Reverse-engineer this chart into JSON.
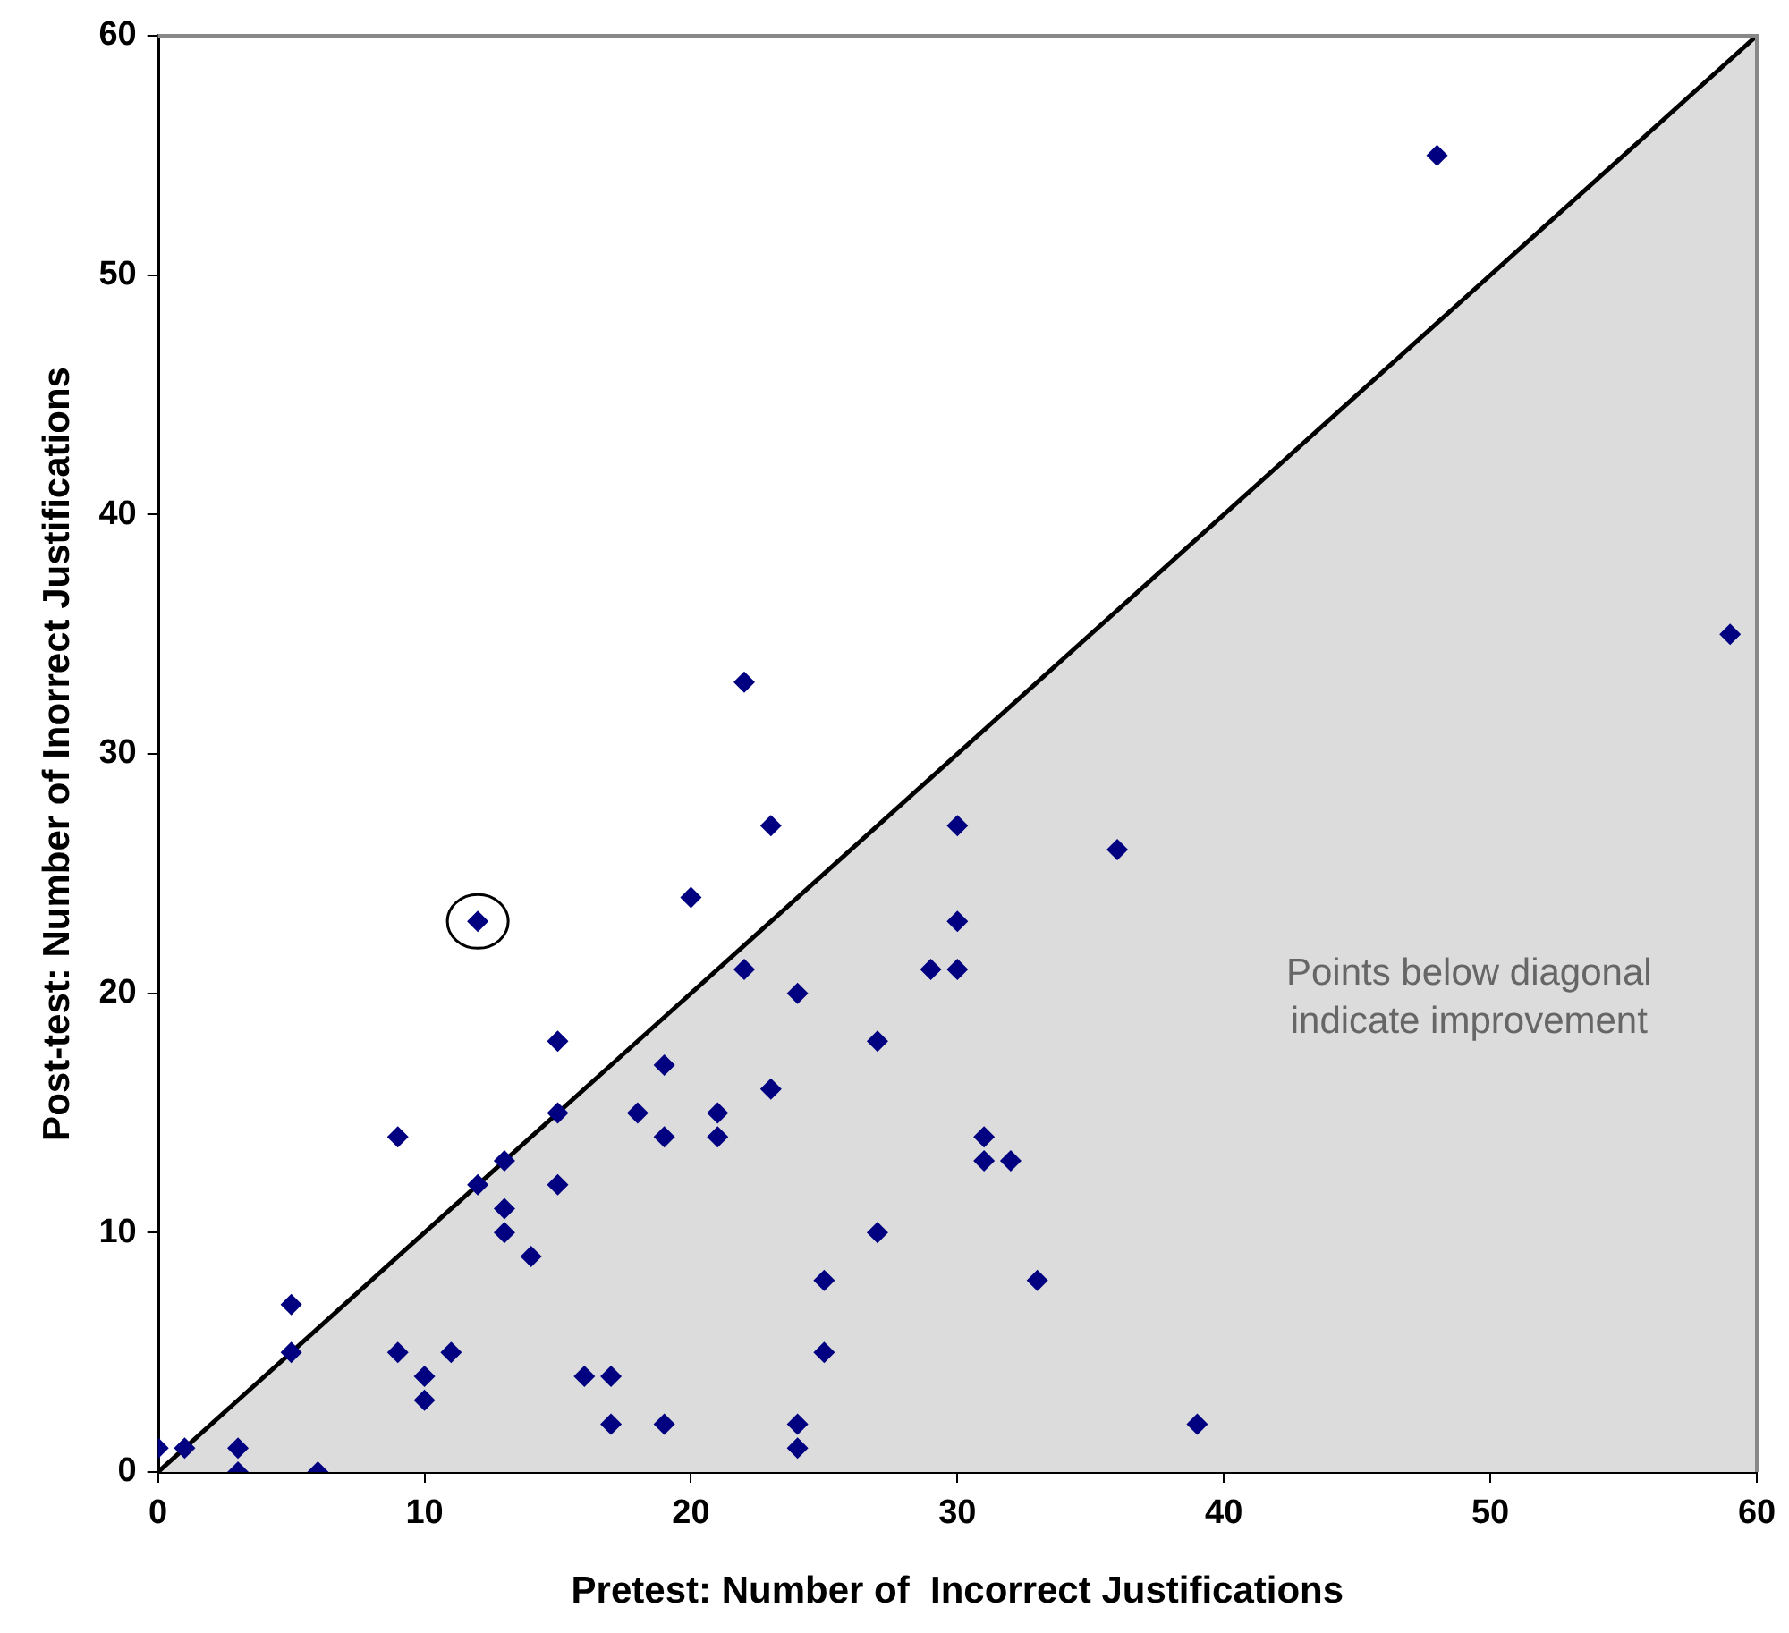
{
  "chart_data": {
    "type": "scatter",
    "xlabel": "Pretest: Number of  Incorrect Justifications",
    "ylabel": "Post-test: Number of Inorrect Justifications",
    "annotations": [
      "Points below diagonal indicate improvement"
    ],
    "xlim": [
      0,
      60
    ],
    "xticks": [
      0,
      10,
      20,
      30,
      40,
      50,
      60
    ],
    "ylim": [
      0,
      60
    ],
    "yticks": [
      0,
      10,
      20,
      30,
      40,
      50,
      60
    ],
    "grid": false,
    "legend": false,
    "marker": "diamond",
    "series": [
      {
        "type": "area",
        "marker": "none",
        "color": "#dcdcdc",
        "x": [
          0,
          60
        ],
        "values": [
          0,
          60
        ]
      },
      {
        "type": "scatter",
        "color": "#000080",
        "x": [
          0,
          5,
          9,
          12,
          15,
          20,
          22,
          23,
          48,
          1,
          5,
          12,
          13,
          15,
          3,
          3,
          6,
          9,
          10,
          10,
          11,
          13,
          13,
          14,
          15,
          16,
          17,
          17,
          18,
          19,
          19,
          19,
          21,
          21,
          22,
          23,
          24,
          24,
          24,
          25,
          25,
          27,
          27,
          29,
          30,
          30,
          30,
          31,
          31,
          32,
          33,
          36,
          39,
          59
        ],
        "values": [
          1,
          7,
          14,
          23,
          18,
          24,
          33,
          27,
          55,
          1,
          5,
          12,
          13,
          15,
          1,
          0,
          0,
          5,
          4,
          3,
          5,
          11,
          10,
          9,
          12,
          4,
          4,
          2,
          15,
          17,
          14,
          2,
          15,
          14,
          21,
          16,
          20,
          2,
          1,
          8,
          5,
          18,
          10,
          21,
          27,
          23,
          21,
          14,
          13,
          13,
          8,
          26,
          2,
          35
        ]
      }
    ]
  }
}
